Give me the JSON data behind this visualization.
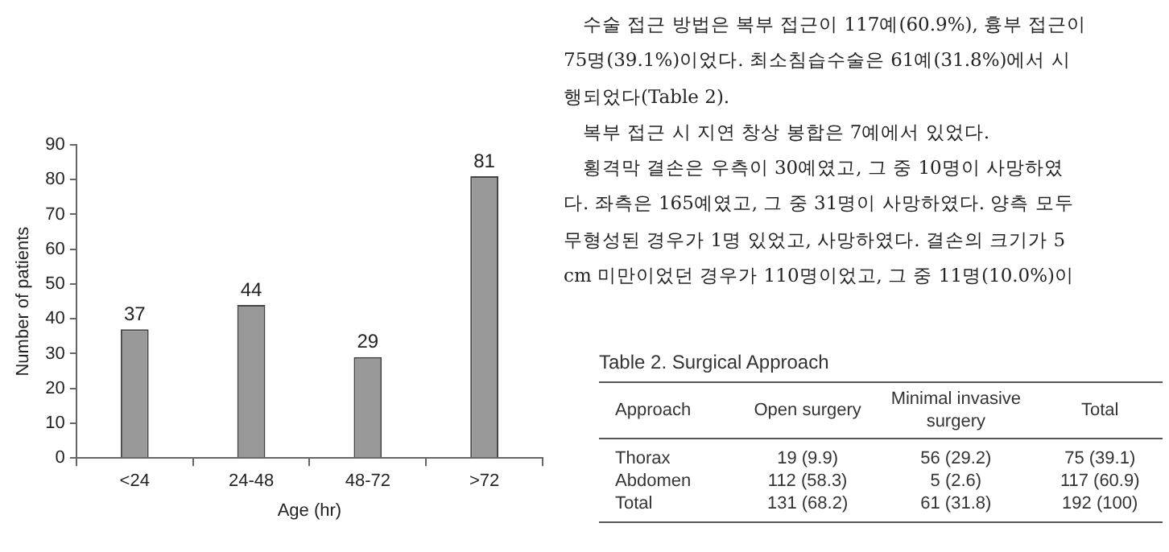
{
  "chart_data": [
    {
      "type": "bar",
      "xlabel": "Age (hr)",
      "ylabel": "Number of patients",
      "categories": [
        "<24",
        "24-48",
        "48-72",
        ">72"
      ],
      "values": [
        37,
        44,
        29,
        81
      ],
      "color": "#999999",
      "ylim": [
        0,
        90
      ],
      "yticks": [
        0,
        10,
        20,
        30,
        40,
        50,
        60,
        70,
        80,
        90
      ],
      "grid": false,
      "legend": false,
      "data_labels": true
    },
    {
      "type": "other",
      "annotations": [
        "수술 접근 방법은 복부 접근이 117예(60.9%), 흉부 접근이",
        "75명(39.1%)이었다. 최소침습수술은 61예(31.8%)에서 시",
        "행되었다(Table 2).",
        "복부 접근 시 지연 창상 봉합은 7예에서 있었다.",
        "횡격막 결손은 우측이 30예였고, 그 중 10명이 사망하였",
        "다. 좌측은 165예였고, 그 중 31명이 사망하였다. 양측 모두",
        "무형성된 경우가 1명 있었고, 사망하였다. 결손의 크기가 5",
        "cm 미만이었던 경우가 110명이었고, 그 중 11명(10.0%)이"
      ]
    },
    {
      "type": "other",
      "title": "Table 2. Surgical Approach",
      "categories": [
        "Approach",
        "Open surgery",
        "Minimal invasive surgery",
        "Total"
      ],
      "y_categories": [
        "Thorax",
        "Abdomen",
        "Total"
      ],
      "cell_labels": [
        [
          "19 (9.9)",
          "56 (29.2)",
          "75 (39.1)"
        ],
        [
          "112 (58.3)",
          "5 (2.6)",
          "117 (60.9)"
        ],
        [
          "131 (68.2)",
          "61 (31.8)",
          "192 (100)"
        ]
      ]
    }
  ]
}
